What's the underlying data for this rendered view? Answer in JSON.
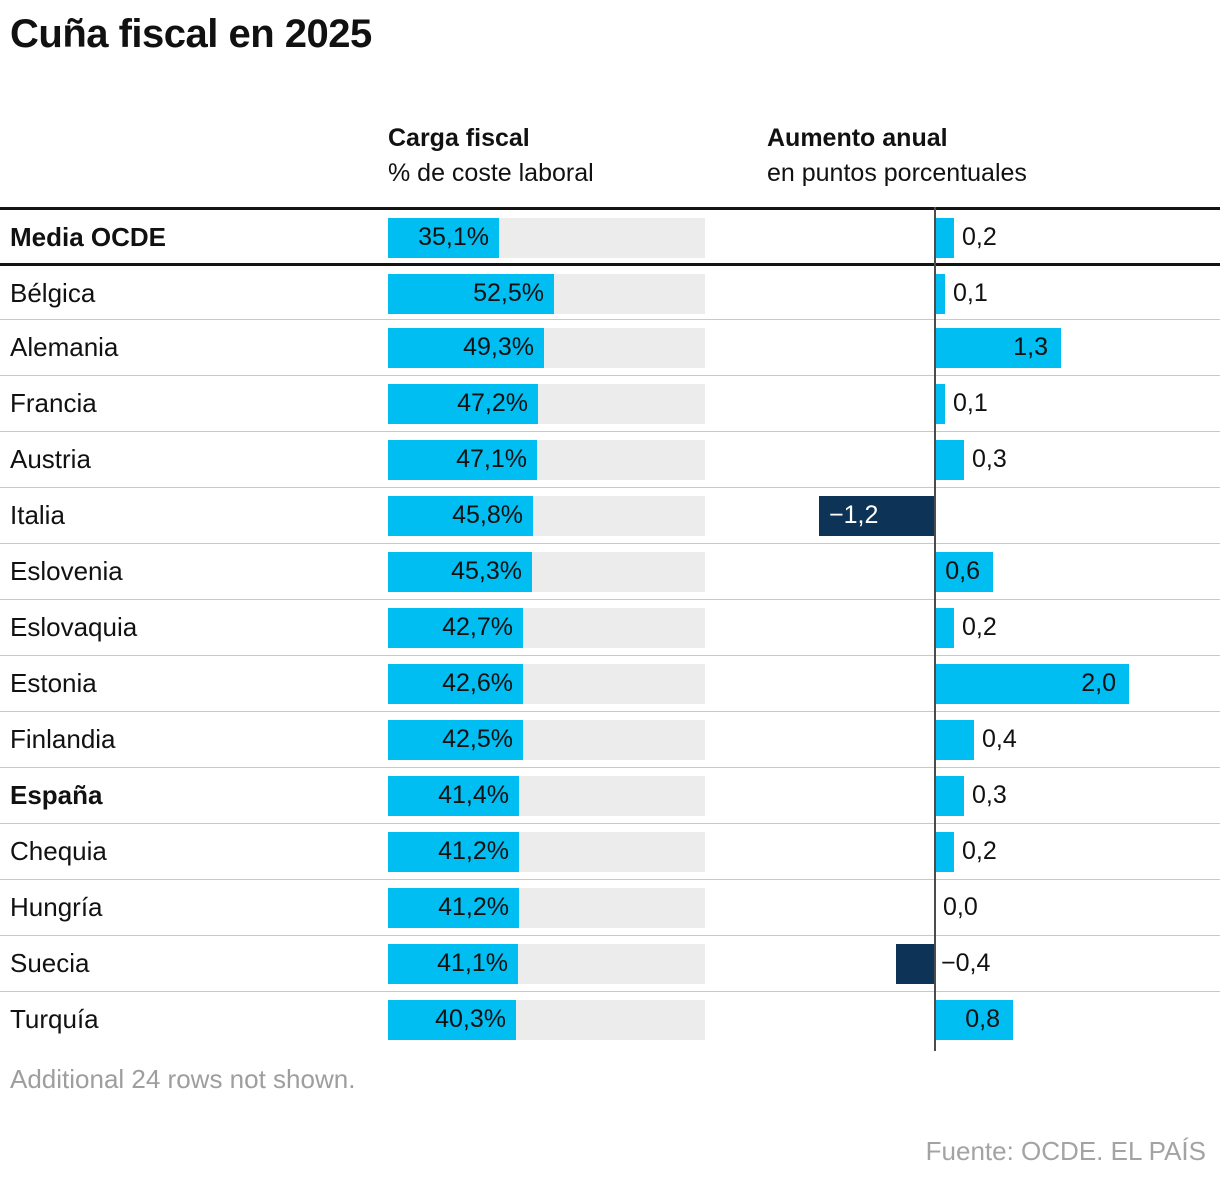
{
  "title": "Cuña fiscal en 2025",
  "columns": {
    "carga": {
      "title": "Carga fiscal",
      "subtitle": "% de coste laboral"
    },
    "aumento": {
      "title": "Aumento anual",
      "subtitle": "en puntos porcentuales"
    }
  },
  "rows": [
    {
      "name": "Media OCDE",
      "bold": true,
      "carga": 35.1,
      "carga_label": "35,1%",
      "aumento": 0.2,
      "aumento_label": "0,2"
    },
    {
      "name": "Bélgica",
      "bold": false,
      "carga": 52.5,
      "carga_label": "52,5%",
      "aumento": 0.1,
      "aumento_label": "0,1"
    },
    {
      "name": "Alemania",
      "bold": false,
      "carga": 49.3,
      "carga_label": "49,3%",
      "aumento": 1.3,
      "aumento_label": "1,3"
    },
    {
      "name": "Francia",
      "bold": false,
      "carga": 47.2,
      "carga_label": "47,2%",
      "aumento": 0.1,
      "aumento_label": "0,1"
    },
    {
      "name": "Austria",
      "bold": false,
      "carga": 47.1,
      "carga_label": "47,1%",
      "aumento": 0.3,
      "aumento_label": "0,3"
    },
    {
      "name": "Italia",
      "bold": false,
      "carga": 45.8,
      "carga_label": "45,8%",
      "aumento": -1.2,
      "aumento_label": "−1,2"
    },
    {
      "name": "Eslovenia",
      "bold": false,
      "carga": 45.3,
      "carga_label": "45,3%",
      "aumento": 0.6,
      "aumento_label": "0,6"
    },
    {
      "name": "Eslovaquia",
      "bold": false,
      "carga": 42.7,
      "carga_label": "42,7%",
      "aumento": 0.2,
      "aumento_label": "0,2"
    },
    {
      "name": "Estonia",
      "bold": false,
      "carga": 42.6,
      "carga_label": "42,6%",
      "aumento": 2.0,
      "aumento_label": "2,0"
    },
    {
      "name": "Finlandia",
      "bold": false,
      "carga": 42.5,
      "carga_label": "42,5%",
      "aumento": 0.4,
      "aumento_label": "0,4"
    },
    {
      "name": "España",
      "bold": true,
      "carga": 41.4,
      "carga_label": "41,4%",
      "aumento": 0.3,
      "aumento_label": "0,3"
    },
    {
      "name": "Chequia",
      "bold": false,
      "carga": 41.2,
      "carga_label": "41,2%",
      "aumento": 0.2,
      "aumento_label": "0,2"
    },
    {
      "name": "Hungría",
      "bold": false,
      "carga": 41.2,
      "carga_label": "41,2%",
      "aumento": 0.0,
      "aumento_label": "0,0"
    },
    {
      "name": "Suecia",
      "bold": false,
      "carga": 41.1,
      "carga_label": "41,1%",
      "aumento": -0.4,
      "aumento_label": "−0,4"
    },
    {
      "name": "Turquía",
      "bold": false,
      "carga": 40.3,
      "carga_label": "40,3%",
      "aumento": 0.8,
      "aumento_label": "0,8"
    }
  ],
  "footnote": "Additional 24 rows not shown.",
  "source": "Fuente: OCDE. EL PAÍS",
  "colors": {
    "bar_cyan": "#00bdf2",
    "bar_navy": "#0d3456",
    "track_gray": "#ececec",
    "axis_gray": "#4c4c4c",
    "note_gray": "#9e9e9e"
  },
  "chart_data": {
    "type": "bar",
    "orientation": "horizontal",
    "title": "Cuña fiscal en 2025",
    "categories": [
      "Media OCDE",
      "Bélgica",
      "Alemania",
      "Francia",
      "Austria",
      "Italia",
      "Eslovenia",
      "Eslovaquia",
      "Estonia",
      "Finlandia",
      "España",
      "Chequia",
      "Hungría",
      "Suecia",
      "Turquía"
    ],
    "series": [
      {
        "name": "Carga fiscal",
        "unit": "% de coste laboral",
        "axis_range": [
          0,
          100
        ],
        "values": [
          35.1,
          52.5,
          49.3,
          47.2,
          47.1,
          45.8,
          45.3,
          42.7,
          42.6,
          42.5,
          41.4,
          41.2,
          41.2,
          41.1,
          40.3
        ]
      },
      {
        "name": "Aumento anual",
        "unit": "en puntos porcentuales",
        "axis_range": [
          -1.8,
          2.2
        ],
        "values": [
          0.2,
          0.1,
          1.3,
          0.1,
          0.3,
          -1.2,
          0.6,
          0.2,
          2.0,
          0.4,
          0.3,
          0.2,
          0.0,
          -0.4,
          0.8
        ]
      }
    ],
    "highlighted_categories": [
      "Media OCDE",
      "España"
    ],
    "negative_color_note": "negative values drawn navy, positive cyan",
    "grid": "row separators only, zero axis line in second column",
    "legend": "none"
  }
}
